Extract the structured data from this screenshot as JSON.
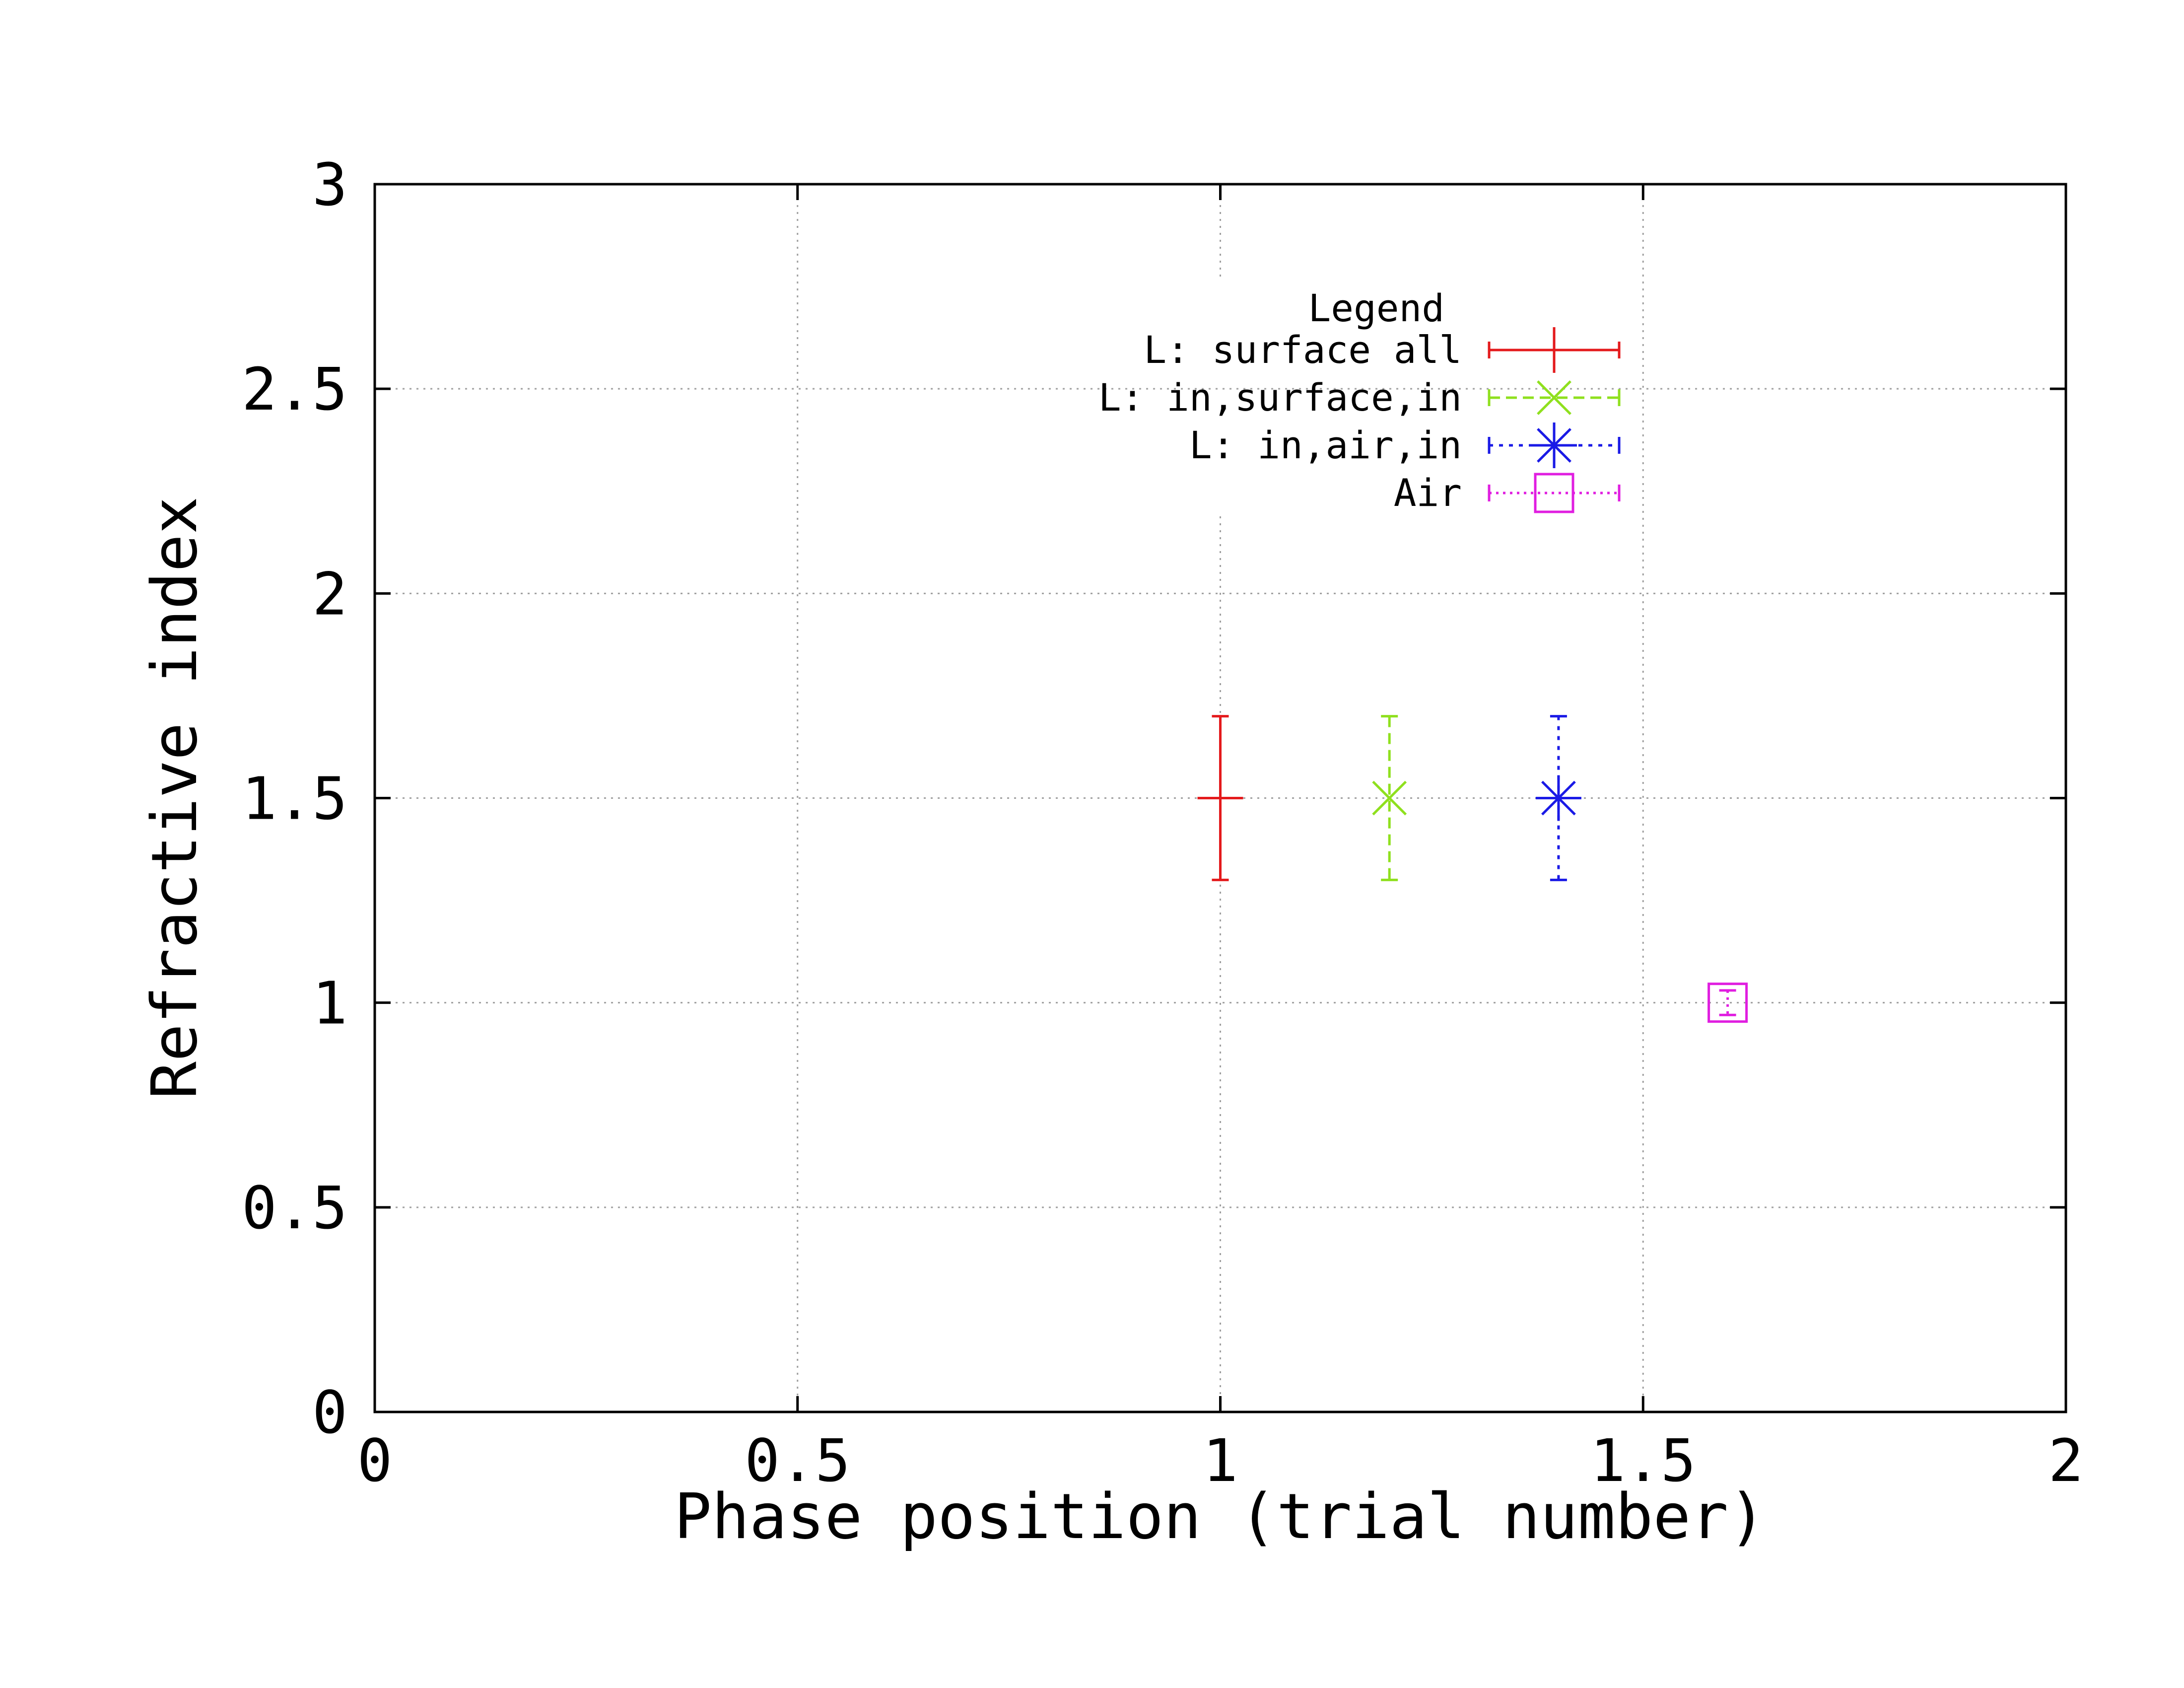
{
  "chart_data": {
    "type": "scatter",
    "xlabel": "Phase position (trial number)",
    "ylabel": "Refractive index",
    "xlim": [
      0,
      2
    ],
    "ylim": [
      0,
      3
    ],
    "x_ticks": [
      "0",
      "0.5",
      "1",
      "1.5",
      "2"
    ],
    "y_ticks": [
      "0",
      "0.5",
      "1",
      "1.5",
      "2",
      "2.5",
      "3"
    ],
    "x_tick_values": [
      0,
      0.5,
      1,
      1.5,
      2
    ],
    "y_tick_values": [
      0,
      0.5,
      1,
      1.5,
      2,
      2.5,
      3
    ],
    "grid": true,
    "legend": {
      "title": "Legend",
      "position": "top-right"
    },
    "series": [
      {
        "name": "L: surface all",
        "color": "#e41a1c",
        "marker": "plus",
        "dash": "solid",
        "points": [
          {
            "x": 1.0,
            "y": 1.5,
            "ylow": 1.3,
            "yhigh": 1.7
          }
        ]
      },
      {
        "name": "L: in,surface,in",
        "color": "#8fe01e",
        "marker": "x",
        "dash": "dashed",
        "points": [
          {
            "x": 1.2,
            "y": 1.5,
            "ylow": 1.3,
            "yhigh": 1.7
          }
        ]
      },
      {
        "name": "L: in,air,in",
        "color": "#1a1ae6",
        "marker": "star",
        "dash": "dotted",
        "points": [
          {
            "x": 1.4,
            "y": 1.5,
            "ylow": 1.3,
            "yhigh": 1.7
          }
        ]
      },
      {
        "name": "Air",
        "color": "#e01ee0",
        "marker": "square",
        "dash": "fine-dotted",
        "points": [
          {
            "x": 1.6,
            "y": 1.0,
            "ylow": 0.97,
            "yhigh": 1.03
          }
        ]
      }
    ]
  }
}
